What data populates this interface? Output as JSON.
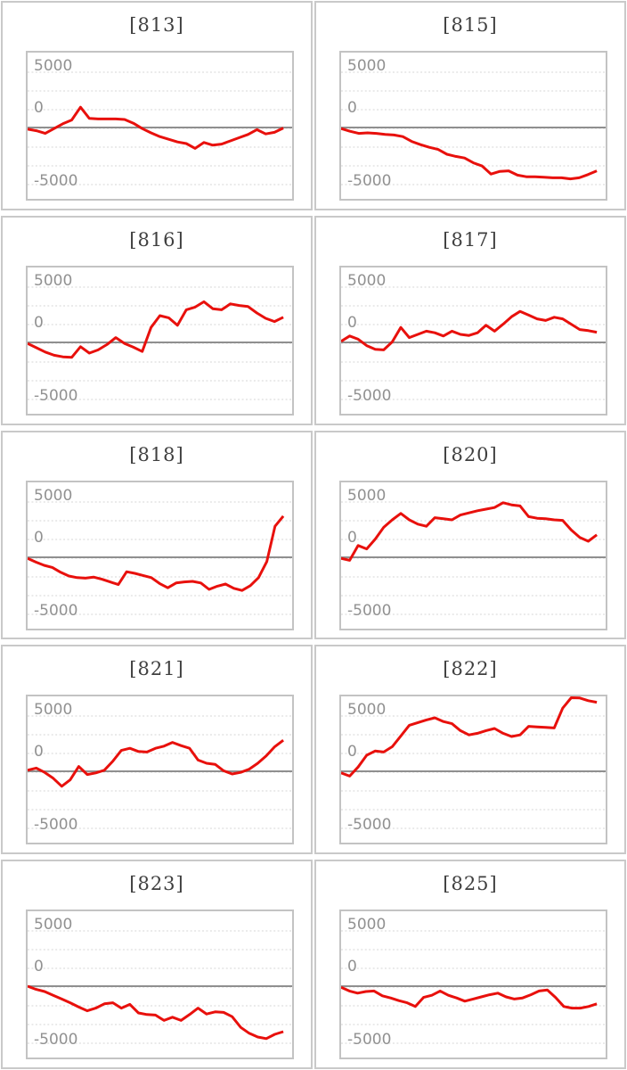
{
  "colors": {
    "background": "#ffffff",
    "cell_border": "#c9c9c9",
    "plot_border": "#c3c3c3",
    "gridline": "#d6d6d6",
    "zero_axis": "#8f8f8f",
    "series_line": "#e8100c",
    "title_text": "#3f3f3f",
    "tick_text": "#919191"
  },
  "axis": {
    "tick_labels": [
      "5000",
      "0",
      "-5000"
    ]
  },
  "chart_data": [
    {
      "type": "line",
      "title": "[813]",
      "y_ticks": [
        5000,
        0,
        -5000
      ],
      "ylim": [
        -7000,
        7000
      ],
      "values": [
        -150,
        -300,
        -550,
        -100,
        350,
        700,
        1900,
        850,
        800,
        800,
        800,
        750,
        400,
        -100,
        -500,
        -850,
        -1100,
        -1350,
        -1500,
        -1950,
        -1400,
        -1650,
        -1550,
        -1250,
        -950,
        -650,
        -200,
        -600,
        -450,
        -50
      ]
    },
    {
      "type": "line",
      "title": "[815]",
      "y_ticks": [
        5000,
        0,
        -5000
      ],
      "ylim": [
        -7000,
        7000
      ],
      "values": [
        -100,
        -350,
        -550,
        -500,
        -550,
        -650,
        -700,
        -850,
        -1300,
        -1600,
        -1850,
        -2050,
        -2500,
        -2700,
        -2850,
        -3300,
        -3600,
        -4350,
        -4100,
        -4050,
        -4450,
        -4600,
        -4600,
        -4650,
        -4700,
        -4700,
        -4800,
        -4700,
        -4400,
        -4050
      ]
    },
    {
      "type": "line",
      "title": "[816]",
      "y_ticks": [
        5000,
        0,
        -5000
      ],
      "ylim": [
        -7000,
        7000
      ],
      "values": [
        -100,
        -500,
        -900,
        -1200,
        -1350,
        -1400,
        -400,
        -1000,
        -700,
        -200,
        450,
        -100,
        -450,
        -850,
        1400,
        2500,
        2300,
        1600,
        3050,
        3300,
        3800,
        3150,
        3050,
        3600,
        3450,
        3350,
        2750,
        2250,
        1950,
        2350
      ]
    },
    {
      "type": "line",
      "title": "[817]",
      "y_ticks": [
        5000,
        0,
        -5000
      ],
      "ylim": [
        -7000,
        7000
      ],
      "values": [
        100,
        600,
        300,
        -300,
        -650,
        -700,
        50,
        1400,
        450,
        750,
        1050,
        900,
        600,
        1050,
        750,
        650,
        900,
        1600,
        1050,
        1700,
        2400,
        2900,
        2550,
        2200,
        2050,
        2350,
        2200,
        1700,
        1200,
        1100,
        950
      ]
    },
    {
      "type": "line",
      "title": "[818]",
      "y_ticks": [
        5000,
        0,
        -5000
      ],
      "ylim": [
        -7000,
        7000
      ],
      "values": [
        -100,
        -450,
        -750,
        -950,
        -1400,
        -1750,
        -1900,
        -1950,
        -1850,
        -2050,
        -2300,
        -2550,
        -1350,
        -1500,
        -1700,
        -1900,
        -2450,
        -2850,
        -2400,
        -2300,
        -2250,
        -2400,
        -3000,
        -2700,
        -2500,
        -2900,
        -3100,
        -2650,
        -1900,
        -400,
        2900,
        3850
      ]
    },
    {
      "type": "line",
      "title": "[820]",
      "y_ticks": [
        5000,
        0,
        -5000
      ],
      "ylim": [
        -7000,
        7000
      ],
      "values": [
        -100,
        -280,
        1100,
        780,
        1700,
        2800,
        3500,
        4100,
        3500,
        3100,
        2900,
        3700,
        3600,
        3500,
        3950,
        4150,
        4350,
        4500,
        4650,
        5100,
        4900,
        4800,
        3800,
        3650,
        3600,
        3500,
        3450,
        2550,
        1850,
        1500,
        2100
      ]
    },
    {
      "type": "line",
      "title": "[821]",
      "y_ticks": [
        5000,
        0,
        -5000
      ],
      "ylim": [
        -7000,
        7000
      ],
      "values": [
        100,
        300,
        -100,
        -650,
        -1400,
        -800,
        450,
        -300,
        -150,
        100,
        950,
        1950,
        2150,
        1850,
        1800,
        2150,
        2350,
        2700,
        2400,
        2150,
        1050,
        750,
        650,
        50,
        -250,
        -100,
        200,
        750,
        1450,
        2300,
        2900
      ]
    },
    {
      "type": "line",
      "title": "[822]",
      "y_ticks": [
        5000,
        0,
        -5000
      ],
      "ylim": [
        -7000,
        7000
      ],
      "values": [
        -150,
        -450,
        400,
        1500,
        1900,
        1800,
        2300,
        3300,
        4300,
        4550,
        4800,
        5000,
        4650,
        4450,
        3800,
        3400,
        3550,
        3800,
        4000,
        3550,
        3250,
        3400,
        4200,
        4150,
        4100,
        4050,
        5900,
        7000,
        6850,
        6600,
        6450
      ]
    },
    {
      "type": "line",
      "title": "[823]",
      "y_ticks": [
        5000,
        0,
        -5000
      ],
      "ylim": [
        -7000,
        7000
      ],
      "values": [
        0,
        -300,
        -500,
        -850,
        -1200,
        -1550,
        -1950,
        -2300,
        -2050,
        -1650,
        -1550,
        -2050,
        -1700,
        -2500,
        -2650,
        -2700,
        -3200,
        -2900,
        -3200,
        -2650,
        -2050,
        -2600,
        -2400,
        -2450,
        -2850,
        -3850,
        -4400,
        -4750,
        -4900,
        -4500,
        -4250
      ]
    },
    {
      "type": "line",
      "title": "[825]",
      "y_ticks": [
        5000,
        0,
        -5000
      ],
      "ylim": [
        -7000,
        7000
      ],
      "values": [
        -100,
        -450,
        -650,
        -500,
        -450,
        -900,
        -1100,
        -1350,
        -1550,
        -1900,
        -1050,
        -850,
        -450,
        -850,
        -1100,
        -1400,
        -1200,
        -1000,
        -800,
        -650,
        -1000,
        -1200,
        -1100,
        -800,
        -450,
        -350,
        -1050,
        -1900,
        -2050,
        -2050,
        -1900,
        -1650
      ]
    }
  ]
}
